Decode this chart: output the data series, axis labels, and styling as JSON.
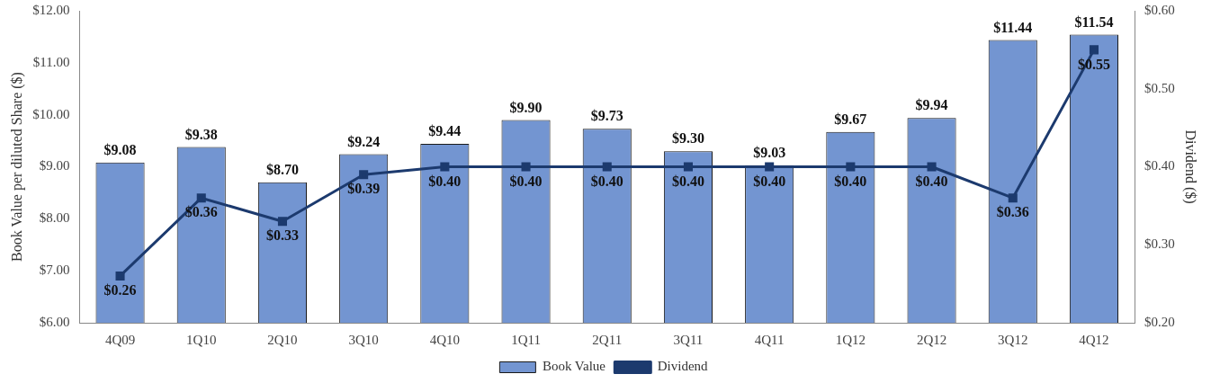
{
  "chart_data": {
    "type": "bar",
    "categories": [
      "4Q09",
      "1Q10",
      "2Q10",
      "3Q10",
      "4Q10",
      "1Q11",
      "2Q11",
      "3Q11",
      "4Q11",
      "1Q12",
      "2Q12",
      "3Q12",
      "4Q12"
    ],
    "series": [
      {
        "name": "Book Value",
        "color": "#7395d1",
        "values": [
          9.08,
          9.38,
          8.7,
          9.24,
          9.44,
          9.9,
          9.73,
          9.3,
          9.03,
          9.67,
          9.94,
          11.44,
          11.54
        ],
        "value_labels": [
          "$9.08",
          "$9.38",
          "$8.70",
          "$9.24",
          "$9.44",
          "$9.90",
          "$9.73",
          "$9.30",
          "$9.03",
          "$9.67",
          "$9.94",
          "$11.44",
          "$11.54"
        ]
      },
      {
        "name": "Dividend",
        "type": "line",
        "axis": "y2",
        "color": "#1c3a6e",
        "values": [
          0.26,
          0.36,
          0.33,
          0.39,
          0.4,
          0.4,
          0.4,
          0.4,
          0.4,
          0.4,
          0.4,
          0.36,
          0.55
        ],
        "value_labels": [
          "$0.26",
          "$0.36",
          "$0.33",
          "$0.39",
          "$0.40",
          "$0.40",
          "$0.40",
          "$0.40",
          "$0.40",
          "$0.40",
          "$0.40",
          "$0.36",
          "$0.55"
        ]
      }
    ],
    "ylabel": "Book Value per diluted Share ($)",
    "y2label": "Dividend ($)",
    "ylim": [
      6,
      12
    ],
    "yticks": [
      {
        "value": 6,
        "label": "$6.00"
      },
      {
        "value": 7,
        "label": "$7.00"
      },
      {
        "value": 8,
        "label": "$8.00"
      },
      {
        "value": 9,
        "label": "$9.00"
      },
      {
        "value": 10,
        "label": "$10.00"
      },
      {
        "value": 11,
        "label": "$11.00"
      },
      {
        "value": 12,
        "label": "$12.00"
      }
    ],
    "y2lim": [
      0.2,
      0.6
    ],
    "y2ticks": [
      {
        "value": 0.2,
        "label": "$0.20"
      },
      {
        "value": 0.3,
        "label": "$0.30"
      },
      {
        "value": 0.4,
        "label": "$0.40"
      },
      {
        "value": 0.5,
        "label": "$0.50"
      },
      {
        "value": 0.6,
        "label": "$0.60"
      }
    ],
    "grid": false,
    "legend": "bottom",
    "marker": "square",
    "line_style": "solid"
  }
}
